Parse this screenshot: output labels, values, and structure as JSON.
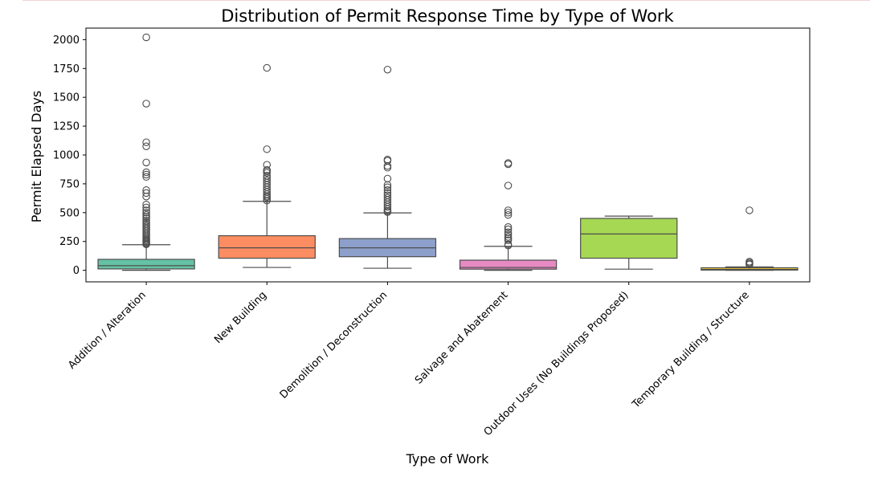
{
  "chart_data": {
    "type": "box",
    "title": "Distribution of Permit Response Time by Type of Work",
    "xlabel": "Type of Work",
    "ylabel": "Permit Elapsed Days",
    "ylim": [
      -100,
      2100
    ],
    "yticks": [
      0,
      250,
      500,
      750,
      1000,
      1250,
      1500,
      1750,
      2000
    ],
    "grid": false,
    "legend": "none",
    "categories": [
      "Addition / Alteration",
      "New Building",
      "Demolition / Deconstruction",
      "Salvage and Abatement",
      "Outdoor Uses (No Buildings Proposed)",
      "Temporary Building / Structure"
    ],
    "boxes": [
      {
        "category": "Addition / Alteration",
        "color": "#66c2a5",
        "whisker_low": 0,
        "q1": 12,
        "median": 40,
        "q3": 95,
        "whisker_high": 222,
        "outliers": [
          2020,
          1445,
          1110,
          1075,
          935,
          850,
          830,
          810,
          695,
          670,
          640,
          570,
          545,
          520,
          500,
          480,
          465,
          450,
          430,
          415,
          400,
          385,
          370,
          355,
          340,
          325,
          310,
          295,
          280,
          270,
          260,
          250,
          240,
          232,
          225
        ]
      },
      {
        "category": "New Building",
        "color": "#fc8d62",
        "whisker_low": 25,
        "q1": 105,
        "median": 195,
        "q3": 300,
        "whisker_high": 598,
        "outliers": [
          1755,
          1050,
          915,
          870,
          860,
          845,
          820,
          800,
          780,
          760,
          740,
          720,
          700,
          680,
          660,
          645,
          635,
          620,
          605
        ]
      },
      {
        "category": "Demolition / Deconstruction",
        "color": "#8da0cb",
        "whisker_low": 18,
        "q1": 118,
        "median": 195,
        "q3": 275,
        "whisker_high": 498,
        "outliers": [
          1740,
          960,
          950,
          905,
          890,
          795,
          740,
          720,
          695,
          670,
          650,
          630,
          610,
          590,
          570,
          550,
          530,
          515,
          505
        ]
      },
      {
        "category": "Salvage and Abatement",
        "color": "#e78ac3",
        "whisker_low": 0,
        "q1": 10,
        "median": 25,
        "q3": 88,
        "whisker_high": 208,
        "outliers": [
          930,
          920,
          735,
          520,
          500,
          480,
          375,
          355,
          330,
          310,
          290,
          275,
          260,
          225,
          215
        ]
      },
      {
        "category": "Outdoor Uses (No Buildings Proposed)",
        "color": "#a6d854",
        "whisker_low": 10,
        "q1": 105,
        "median": 315,
        "q3": 450,
        "whisker_high": 470,
        "outliers": []
      },
      {
        "category": "Temporary Building / Structure",
        "color": "#ffd92f",
        "whisker_low": 0,
        "q1": 2,
        "median": 8,
        "q3": 22,
        "whisker_high": 30,
        "outliers": [
          520,
          75,
          65,
          55,
          50
        ]
      }
    ]
  }
}
